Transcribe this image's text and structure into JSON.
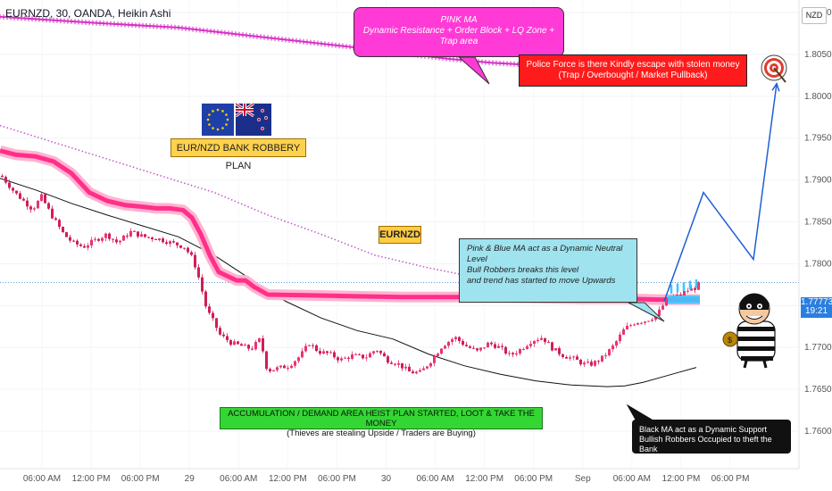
{
  "header": {
    "title": "EURNZD, 30, OANDA, Heikin Ashi",
    "currency_button": "NZD"
  },
  "price_tag": {
    "price": "1.77773",
    "countdown": "19:21"
  },
  "annotations": {
    "pink_ma_title": "PINK MA",
    "pink_ma_text": "Dynamic Resistance + Order Block + LQ Zone + Trap area",
    "police_line1": "Police Force is there Kindly escape with stolen money",
    "police_line2": "(Trap / Overbought / Market Pullback)",
    "plan": "EUR/NZD BANK ROBBERY PLAN",
    "symbol": "EURNZD",
    "neutral_line1": "Pink & Blue MA act as a Dynamic Neutral Level",
    "neutral_line2": "Bull Robbers breaks this level",
    "neutral_line3": "and trend has started to move Upwards",
    "accum_line1": "ACCUMULATION / DEMAND AREA HEIST PLAN STARTED, LOOT & TAKE THE MONEY",
    "accum_line2": "(Thieves are stealing Upside / Traders are Buying)",
    "black_line1": "Black MA act as a Dynamic Support",
    "black_line2": "Bullish Robbers Occupied to theft the Bank"
  },
  "colors": {
    "bull": "#e0265f",
    "bear": "#e0265f",
    "pink_ma": "#ff2f8a",
    "upper_ma": "#d630c4",
    "black_ma": "#111111",
    "projection": "#1f5fd6",
    "target_zone": "#3ec6ff"
  },
  "chart_data": {
    "type": "candlestick",
    "symbol": "EURNZD",
    "interval": "30",
    "ylim": [
      1.7555,
      1.8115
    ],
    "y_ticks": [
      1.76,
      1.765,
      1.77,
      1.775,
      1.78,
      1.785,
      1.79,
      1.795,
      1.8,
      1.805,
      1.81
    ],
    "x_tick_labels": [
      "06:00 AM",
      "12:00 PM",
      "06:00 PM",
      "29",
      "06:00 AM",
      "12:00 PM",
      "06:00 PM",
      "30",
      "06:00 AM",
      "12:00 PM",
      "06:00 PM",
      "Sep",
      "06:00 AM",
      "12:00 PM",
      "06:00 PM"
    ],
    "price_path": [
      [
        0,
        1.7905
      ],
      [
        15,
        1.7885
      ],
      [
        25,
        1.7875
      ],
      [
        35,
        1.7865
      ],
      [
        45,
        1.788
      ],
      [
        55,
        1.786
      ],
      [
        70,
        1.7835
      ],
      [
        80,
        1.7825
      ],
      [
        92,
        1.782
      ],
      [
        105,
        1.7828
      ],
      [
        118,
        1.7835
      ],
      [
        130,
        1.7825
      ],
      [
        145,
        1.7838
      ],
      [
        160,
        1.7832
      ],
      [
        175,
        1.783
      ],
      [
        190,
        1.7825
      ],
      [
        205,
        1.782
      ],
      [
        215,
        1.7805
      ],
      [
        222,
        1.778
      ],
      [
        230,
        1.7745
      ],
      [
        238,
        1.773
      ],
      [
        245,
        1.7715
      ],
      [
        258,
        1.7705
      ],
      [
        268,
        1.7702
      ],
      [
        280,
        1.7698
      ],
      [
        290,
        1.771
      ],
      [
        298,
        1.7672
      ],
      [
        310,
        1.7675
      ],
      [
        322,
        1.7678
      ],
      [
        335,
        1.769
      ],
      [
        345,
        1.7705
      ],
      [
        355,
        1.7695
      ],
      [
        368,
        1.7692
      ],
      [
        380,
        1.7685
      ],
      [
        393,
        1.769
      ],
      [
        408,
        1.7688
      ],
      [
        420,
        1.7698
      ],
      [
        432,
        1.7685
      ],
      [
        445,
        1.768
      ],
      [
        458,
        1.767
      ],
      [
        470,
        1.767
      ],
      [
        482,
        1.7685
      ],
      [
        494,
        1.7702
      ],
      [
        508,
        1.7712
      ],
      [
        520,
        1.7702
      ],
      [
        533,
        1.7695
      ],
      [
        546,
        1.7705
      ],
      [
        558,
        1.77
      ],
      [
        570,
        1.769
      ],
      [
        582,
        1.7698
      ],
      [
        594,
        1.7708
      ],
      [
        606,
        1.7712
      ],
      [
        618,
        1.7698
      ],
      [
        630,
        1.769
      ],
      [
        642,
        1.7686
      ],
      [
        652,
        1.768
      ],
      [
        662,
        1.768
      ],
      [
        674,
        1.7688
      ],
      [
        686,
        1.7702
      ],
      [
        698,
        1.7722
      ],
      [
        710,
        1.773
      ],
      [
        722,
        1.7732
      ],
      [
        734,
        1.7738
      ],
      [
        744,
        1.7755
      ],
      [
        752,
        1.776
      ],
      [
        760,
        1.7762
      ],
      [
        768,
        1.7768
      ],
      [
        776,
        1.777
      ],
      [
        784,
        1.7778
      ]
    ],
    "pink_ma": [
      [
        0,
        1.7935
      ],
      [
        18,
        1.793
      ],
      [
        40,
        1.7928
      ],
      [
        60,
        1.7922
      ],
      [
        80,
        1.7908
      ],
      [
        100,
        1.7885
      ],
      [
        120,
        1.7875
      ],
      [
        140,
        1.787
      ],
      [
        160,
        1.7868
      ],
      [
        175,
        1.7866
      ],
      [
        190,
        1.7866
      ],
      [
        205,
        1.7864
      ],
      [
        215,
        1.7855
      ],
      [
        225,
        1.7835
      ],
      [
        235,
        1.781
      ],
      [
        245,
        1.779
      ],
      [
        255,
        1.7785
      ],
      [
        265,
        1.778
      ],
      [
        275,
        1.778
      ],
      [
        285,
        1.7772
      ],
      [
        300,
        1.7763
      ],
      [
        350,
        1.7762
      ],
      [
        400,
        1.7761
      ],
      [
        450,
        1.776
      ],
      [
        500,
        1.776
      ],
      [
        550,
        1.776
      ],
      [
        600,
        1.7759
      ],
      [
        650,
        1.7758
      ],
      [
        700,
        1.7758
      ],
      [
        740,
        1.7757
      ],
      [
        784,
        1.7757
      ]
    ],
    "upper_ma": [
      [
        0,
        1.8095
      ],
      [
        100,
        1.8088
      ],
      [
        200,
        1.8082
      ],
      [
        300,
        1.807
      ],
      [
        400,
        1.8058
      ],
      [
        500,
        1.8045
      ],
      [
        550,
        1.804
      ],
      [
        600,
        1.8037
      ],
      [
        650,
        1.8033
      ],
      [
        700,
        1.803
      ],
      [
        750,
        1.8026
      ],
      [
        784,
        1.8024
      ]
    ],
    "black_ma": [
      [
        0,
        1.7902
      ],
      [
        40,
        1.7888
      ],
      [
        80,
        1.7872
      ],
      [
        120,
        1.7858
      ],
      [
        160,
        1.7845
      ],
      [
        200,
        1.7832
      ],
      [
        240,
        1.781
      ],
      [
        280,
        1.7782
      ],
      [
        320,
        1.7755
      ],
      [
        360,
        1.7735
      ],
      [
        400,
        1.772
      ],
      [
        440,
        1.771
      ],
      [
        480,
        1.7692
      ],
      [
        520,
        1.7678
      ],
      [
        560,
        1.7668
      ],
      [
        600,
        1.766
      ],
      [
        640,
        1.7655
      ],
      [
        680,
        1.7653
      ],
      [
        700,
        1.7654
      ],
      [
        720,
        1.7658
      ],
      [
        740,
        1.7664
      ],
      [
        760,
        1.767
      ],
      [
        780,
        1.7676
      ]
    ],
    "dotted_ma": [
      [
        0,
        1.7965
      ],
      [
        60,
        1.7945
      ],
      [
        120,
        1.7925
      ],
      [
        180,
        1.7905
      ],
      [
        240,
        1.7885
      ],
      [
        300,
        1.7858
      ],
      [
        360,
        1.7835
      ],
      [
        420,
        1.781
      ],
      [
        480,
        1.7795
      ],
      [
        540,
        1.7782
      ],
      [
        600,
        1.7772
      ],
      [
        660,
        1.7765
      ],
      [
        720,
        1.776
      ],
      [
        760,
        1.7758
      ]
    ],
    "projection": [
      [
        744,
        1.7755
      ],
      [
        788,
        1.7885
      ],
      [
        844,
        1.7805
      ],
      [
        870,
        1.8015
      ]
    ],
    "target_zone": [
      1.7752,
      1.7762
    ]
  }
}
